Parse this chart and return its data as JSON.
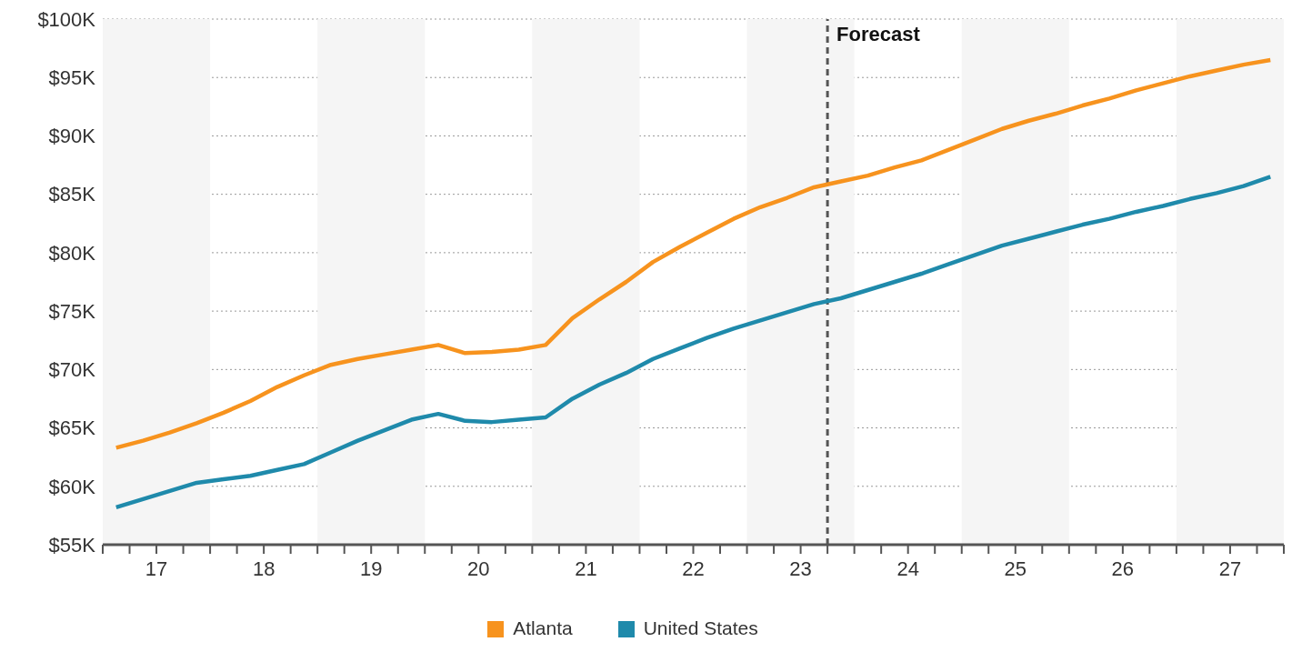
{
  "chart_data": {
    "type": "line",
    "x": [
      16.625,
      16.875,
      17.125,
      17.375,
      17.625,
      17.875,
      18.125,
      18.375,
      18.625,
      18.875,
      19.125,
      19.375,
      19.625,
      19.875,
      20.125,
      20.375,
      20.625,
      20.875,
      21.125,
      21.375,
      21.625,
      21.875,
      22.125,
      22.375,
      22.625,
      22.875,
      23.125,
      23.375,
      23.625,
      23.875,
      24.125,
      24.375,
      24.625,
      24.875,
      25.125,
      25.375,
      25.625,
      25.875,
      26.125,
      26.375,
      26.625,
      26.875,
      27.125,
      27.375
    ],
    "series": [
      {
        "name": "Atlanta",
        "color": "#f7931e",
        "values": [
          63.3,
          63.9,
          64.6,
          65.4,
          66.3,
          67.3,
          68.5,
          69.5,
          70.4,
          70.9,
          71.3,
          71.7,
          72.1,
          71.4,
          71.5,
          71.7,
          72.1,
          74.4,
          76.0,
          77.5,
          79.2,
          80.5,
          81.7,
          82.9,
          83.9,
          84.7,
          85.6,
          86.1,
          86.6,
          87.3,
          87.9,
          88.8,
          89.7,
          90.6,
          91.3,
          91.9,
          92.6,
          93.2,
          93.9,
          94.5,
          95.1,
          95.6,
          96.1,
          96.5
        ]
      },
      {
        "name": "United States",
        "color": "#1f8aab",
        "values": [
          58.2,
          58.9,
          59.6,
          60.3,
          60.6,
          60.9,
          61.4,
          61.9,
          62.9,
          63.9,
          64.8,
          65.7,
          66.2,
          65.6,
          65.5,
          65.7,
          65.9,
          67.5,
          68.7,
          69.7,
          70.9,
          71.8,
          72.7,
          73.5,
          74.2,
          74.9,
          75.6,
          76.1,
          76.8,
          77.5,
          78.2,
          79.0,
          79.8,
          80.6,
          81.2,
          81.8,
          82.4,
          82.9,
          83.5,
          84.0,
          84.6,
          85.1,
          85.7,
          86.5
        ]
      }
    ],
    "xlim": [
      16.5,
      27.5
    ],
    "xticks": [
      {
        "value": 16.5,
        "label": null
      },
      {
        "value": 16.75,
        "label": null
      },
      {
        "value": 17,
        "label": "17"
      },
      {
        "value": 17.25,
        "label": null
      },
      {
        "value": 17.5,
        "label": null
      },
      {
        "value": 17.75,
        "label": null
      },
      {
        "value": 18,
        "label": "18"
      },
      {
        "value": 18.25,
        "label": null
      },
      {
        "value": 18.5,
        "label": null
      },
      {
        "value": 18.75,
        "label": null
      },
      {
        "value": 19,
        "label": "19"
      },
      {
        "value": 19.25,
        "label": null
      },
      {
        "value": 19.5,
        "label": null
      },
      {
        "value": 19.75,
        "label": null
      },
      {
        "value": 20,
        "label": "20"
      },
      {
        "value": 20.25,
        "label": null
      },
      {
        "value": 20.5,
        "label": null
      },
      {
        "value": 20.75,
        "label": null
      },
      {
        "value": 21,
        "label": "21"
      },
      {
        "value": 21.25,
        "label": null
      },
      {
        "value": 21.5,
        "label": null
      },
      {
        "value": 21.75,
        "label": null
      },
      {
        "value": 22,
        "label": "22"
      },
      {
        "value": 22.25,
        "label": null
      },
      {
        "value": 22.5,
        "label": null
      },
      {
        "value": 22.75,
        "label": null
      },
      {
        "value": 23,
        "label": "23"
      },
      {
        "value": 23.25,
        "label": null
      },
      {
        "value": 23.5,
        "label": null
      },
      {
        "value": 23.75,
        "label": null
      },
      {
        "value": 24,
        "label": "24"
      },
      {
        "value": 24.25,
        "label": null
      },
      {
        "value": 24.5,
        "label": null
      },
      {
        "value": 24.75,
        "label": null
      },
      {
        "value": 25,
        "label": "25"
      },
      {
        "value": 25.25,
        "label": null
      },
      {
        "value": 25.5,
        "label": null
      },
      {
        "value": 25.75,
        "label": null
      },
      {
        "value": 26,
        "label": "26"
      },
      {
        "value": 26.25,
        "label": null
      },
      {
        "value": 26.5,
        "label": null
      },
      {
        "value": 26.75,
        "label": null
      },
      {
        "value": 27,
        "label": "27"
      },
      {
        "value": 27.25,
        "label": null
      },
      {
        "value": 27.5,
        "label": null
      }
    ],
    "ylim": [
      55,
      100
    ],
    "yticks": [
      {
        "value": 55,
        "label": "$55K"
      },
      {
        "value": 60,
        "label": "$60K"
      },
      {
        "value": 65,
        "label": "$65K"
      },
      {
        "value": 70,
        "label": "$70K"
      },
      {
        "value": 75,
        "label": "$75K"
      },
      {
        "value": 80,
        "label": "$80K"
      },
      {
        "value": 85,
        "label": "$85K"
      },
      {
        "value": 90,
        "label": "$90K"
      },
      {
        "value": 95,
        "label": "$95K"
      },
      {
        "value": 100,
        "label": "$100K"
      }
    ],
    "bands": [
      {
        "axis": "x",
        "from": 16.5,
        "to": 17.5,
        "color": "#f5f5f5"
      },
      {
        "axis": "x",
        "from": 18.5,
        "to": 19.5,
        "color": "#f5f5f5"
      },
      {
        "axis": "x",
        "from": 20.5,
        "to": 21.5,
        "color": "#f5f5f5"
      },
      {
        "axis": "x",
        "from": 22.5,
        "to": 23.5,
        "color": "#f5f5f5"
      },
      {
        "axis": "x",
        "from": 24.5,
        "to": 25.5,
        "color": "#f5f5f5"
      },
      {
        "axis": "x",
        "from": 26.5,
        "to": 27.5,
        "color": "#f5f5f5"
      }
    ],
    "ref_lines": [
      {
        "axis": "x",
        "value": 23.25,
        "label": "Forecast",
        "color": "#555555",
        "line_style": "dashed"
      }
    ],
    "grid": "y",
    "legend": "bottom",
    "marker": "none",
    "line_style": "solid"
  }
}
